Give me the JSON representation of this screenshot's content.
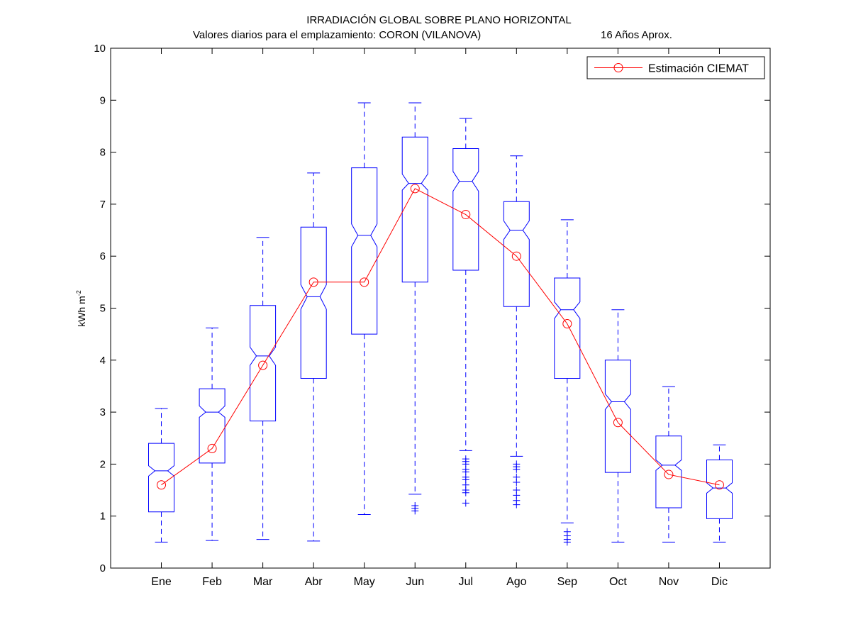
{
  "chart_data": {
    "type": "box",
    "title": "IRRADIACIÓN GLOBAL SOBRE PLANO HORIZONTAL",
    "subtitle_left": "Valores diarios para el emplazamiento:  CORON (VILANOVA)",
    "subtitle_right": "16 Años Aprox.",
    "ylabel_main": "kWh m",
    "ylabel_sup": "-2",
    "xlabel": "",
    "ylim": [
      0,
      10
    ],
    "yticks": [
      "0",
      "1",
      "2",
      "3",
      "4",
      "5",
      "6",
      "7",
      "8",
      "9",
      "10"
    ],
    "grid": false,
    "legend_position": "top-right",
    "categories": [
      "Ene",
      "Feb",
      "Mar",
      "Abr",
      "May",
      "Jun",
      "Jul",
      "Ago",
      "Sep",
      "Oct",
      "Nov",
      "Dic"
    ],
    "boxes": [
      {
        "min": 0.5,
        "q1": 1.08,
        "median": 1.87,
        "q3": 2.4,
        "max": 3.07,
        "notch_lo": 1.77,
        "notch_hi": 1.97,
        "outliers": []
      },
      {
        "min": 0.53,
        "q1": 2.02,
        "median": 3.0,
        "q3": 3.45,
        "max": 4.62,
        "notch_lo": 2.9,
        "notch_hi": 3.12,
        "outliers": []
      },
      {
        "min": 0.55,
        "q1": 2.83,
        "median": 4.08,
        "q3": 5.05,
        "max": 6.36,
        "notch_lo": 3.9,
        "notch_hi": 4.25,
        "outliers": []
      },
      {
        "min": 0.52,
        "q1": 3.65,
        "median": 5.22,
        "q3": 6.56,
        "max": 7.6,
        "notch_lo": 4.98,
        "notch_hi": 5.45,
        "outliers": []
      },
      {
        "min": 1.03,
        "q1": 4.5,
        "median": 6.4,
        "q3": 7.7,
        "max": 8.95,
        "notch_lo": 6.18,
        "notch_hi": 6.62,
        "outliers": []
      },
      {
        "min": 1.42,
        "q1": 5.5,
        "median": 7.4,
        "q3": 8.29,
        "max": 8.95,
        "notch_lo": 7.27,
        "notch_hi": 7.58,
        "outliers": [
          1.1,
          1.15,
          1.2
        ]
      },
      {
        "min": 2.26,
        "q1": 5.73,
        "median": 7.44,
        "q3": 8.07,
        "max": 8.65,
        "notch_lo": 7.25,
        "notch_hi": 7.63,
        "outliers": [
          1.25,
          1.45,
          1.5,
          1.6,
          1.7,
          1.75,
          1.85,
          1.9,
          2.0,
          2.05,
          2.1
        ]
      },
      {
        "min": 2.15,
        "q1": 5.03,
        "median": 6.5,
        "q3": 7.05,
        "max": 7.93,
        "notch_lo": 6.32,
        "notch_hi": 6.68,
        "outliers": [
          1.22,
          1.3,
          1.4,
          1.5,
          1.65,
          1.75,
          1.9,
          1.95,
          2.0
        ]
      },
      {
        "min": 0.87,
        "q1": 3.65,
        "median": 4.97,
        "q3": 5.58,
        "max": 6.7,
        "notch_lo": 4.8,
        "notch_hi": 5.12,
        "outliers": [
          0.5,
          0.55,
          0.62,
          0.7
        ]
      },
      {
        "min": 0.5,
        "q1": 1.84,
        "median": 3.2,
        "q3": 4.0,
        "max": 4.97,
        "notch_lo": 3.05,
        "notch_hi": 3.35,
        "outliers": []
      },
      {
        "min": 0.5,
        "q1": 1.16,
        "median": 1.98,
        "q3": 2.54,
        "max": 3.49,
        "notch_lo": 1.88,
        "notch_hi": 2.08,
        "outliers": []
      },
      {
        "min": 0.5,
        "q1": 0.95,
        "median": 1.54,
        "q3": 2.08,
        "max": 2.37,
        "notch_lo": 1.44,
        "notch_hi": 1.64,
        "outliers": []
      }
    ],
    "series": [
      {
        "name": "Estimación CIEMAT",
        "values": [
          1.6,
          2.3,
          3.9,
          5.5,
          5.5,
          7.3,
          6.8,
          6.0,
          4.7,
          2.8,
          1.8,
          1.6
        ]
      }
    ],
    "colors": {
      "box": "#0000ff",
      "line": "#ff0000",
      "axes": "#000000"
    }
  }
}
